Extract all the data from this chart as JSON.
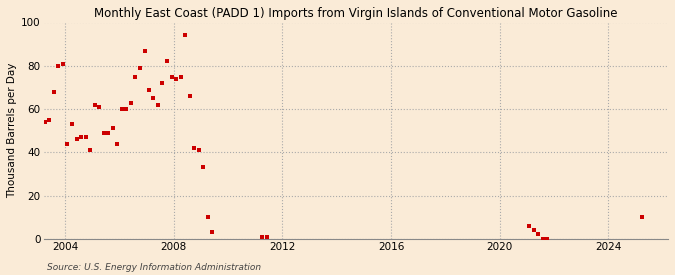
{
  "title": "Monthly East Coast (PADD 1) Imports from Virgin Islands of Conventional Motor Gasoline",
  "ylabel": "Thousand Barrels per Day",
  "source": "Source: U.S. Energy Information Administration",
  "background_color": "#faebd7",
  "dot_color": "#cc0000",
  "xlim": [
    2003.2,
    2026.2
  ],
  "ylim": [
    0,
    100
  ],
  "xticks": [
    2004,
    2008,
    2012,
    2016,
    2020,
    2024
  ],
  "yticks": [
    0,
    20,
    40,
    60,
    80,
    100
  ],
  "data_x": [
    2003.25,
    2003.42,
    2003.58,
    2003.75,
    2003.92,
    2004.08,
    2004.25,
    2004.42,
    2004.58,
    2004.75,
    2004.92,
    2005.08,
    2005.25,
    2005.42,
    2005.58,
    2005.75,
    2005.92,
    2006.08,
    2006.25,
    2006.42,
    2006.58,
    2006.75,
    2006.92,
    2007.08,
    2007.25,
    2007.42,
    2007.58,
    2007.75,
    2007.92,
    2008.08,
    2008.25,
    2008.42,
    2008.58,
    2008.75,
    2008.92,
    2009.08,
    2009.25,
    2009.42,
    2011.25,
    2011.42,
    2021.08,
    2021.25,
    2021.42,
    2021.58,
    2021.75,
    2025.25
  ],
  "data_y": [
    54,
    55,
    68,
    80,
    81,
    44,
    53,
    46,
    47,
    47,
    41,
    62,
    61,
    49,
    49,
    51,
    44,
    60,
    60,
    63,
    75,
    79,
    87,
    69,
    65,
    62,
    72,
    82,
    75,
    74,
    75,
    94,
    66,
    42,
    41,
    33,
    10,
    3,
    1,
    1,
    6,
    4,
    2,
    0,
    0,
    10
  ]
}
